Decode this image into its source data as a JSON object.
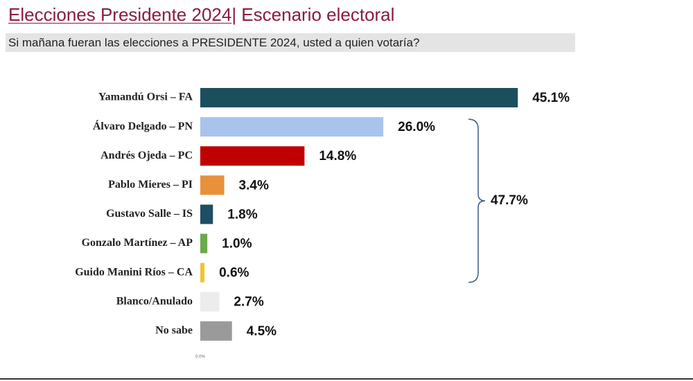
{
  "chart_data": {
    "type": "hbar",
    "title": "Elecciones Presidente 2024",
    "title_section": "| Escenario electoral",
    "subtitle": "Si mañana fueran las elecciones a PRESIDENTE 2024, usted a quien votaría?",
    "categories": [
      "Yamandú Orsi – FA",
      "Álvaro Delgado – PN",
      "Andrés Ojeda – PC",
      "Pablo Mieres – PI",
      "Gustavo Salle – IS",
      "Gonzalo Martínez – AP",
      "Guido Manini Ríos – CA",
      "Blanco/Anulado",
      "No sabe"
    ],
    "values": [
      45.1,
      26.0,
      14.8,
      3.4,
      1.8,
      1.0,
      0.6,
      2.7,
      4.5
    ],
    "value_labels": [
      "45.1%",
      "26.0%",
      "14.8%",
      "3.4%",
      "1.8%",
      "1.0%",
      "0.6%",
      "2.7%",
      "4.5%"
    ],
    "colors": [
      "#1b4f5d",
      "#a9c4ec",
      "#c00000",
      "#e8913a",
      "#1d4e63",
      "#6aaa4a",
      "#f2c233",
      "#ececec",
      "#9a9a9a"
    ],
    "xlim": [
      0,
      50
    ],
    "xticks": [
      {
        "value": 0,
        "label": "0.0%"
      }
    ],
    "bracket": {
      "value": 47.7,
      "label": "47.7%"
    }
  }
}
